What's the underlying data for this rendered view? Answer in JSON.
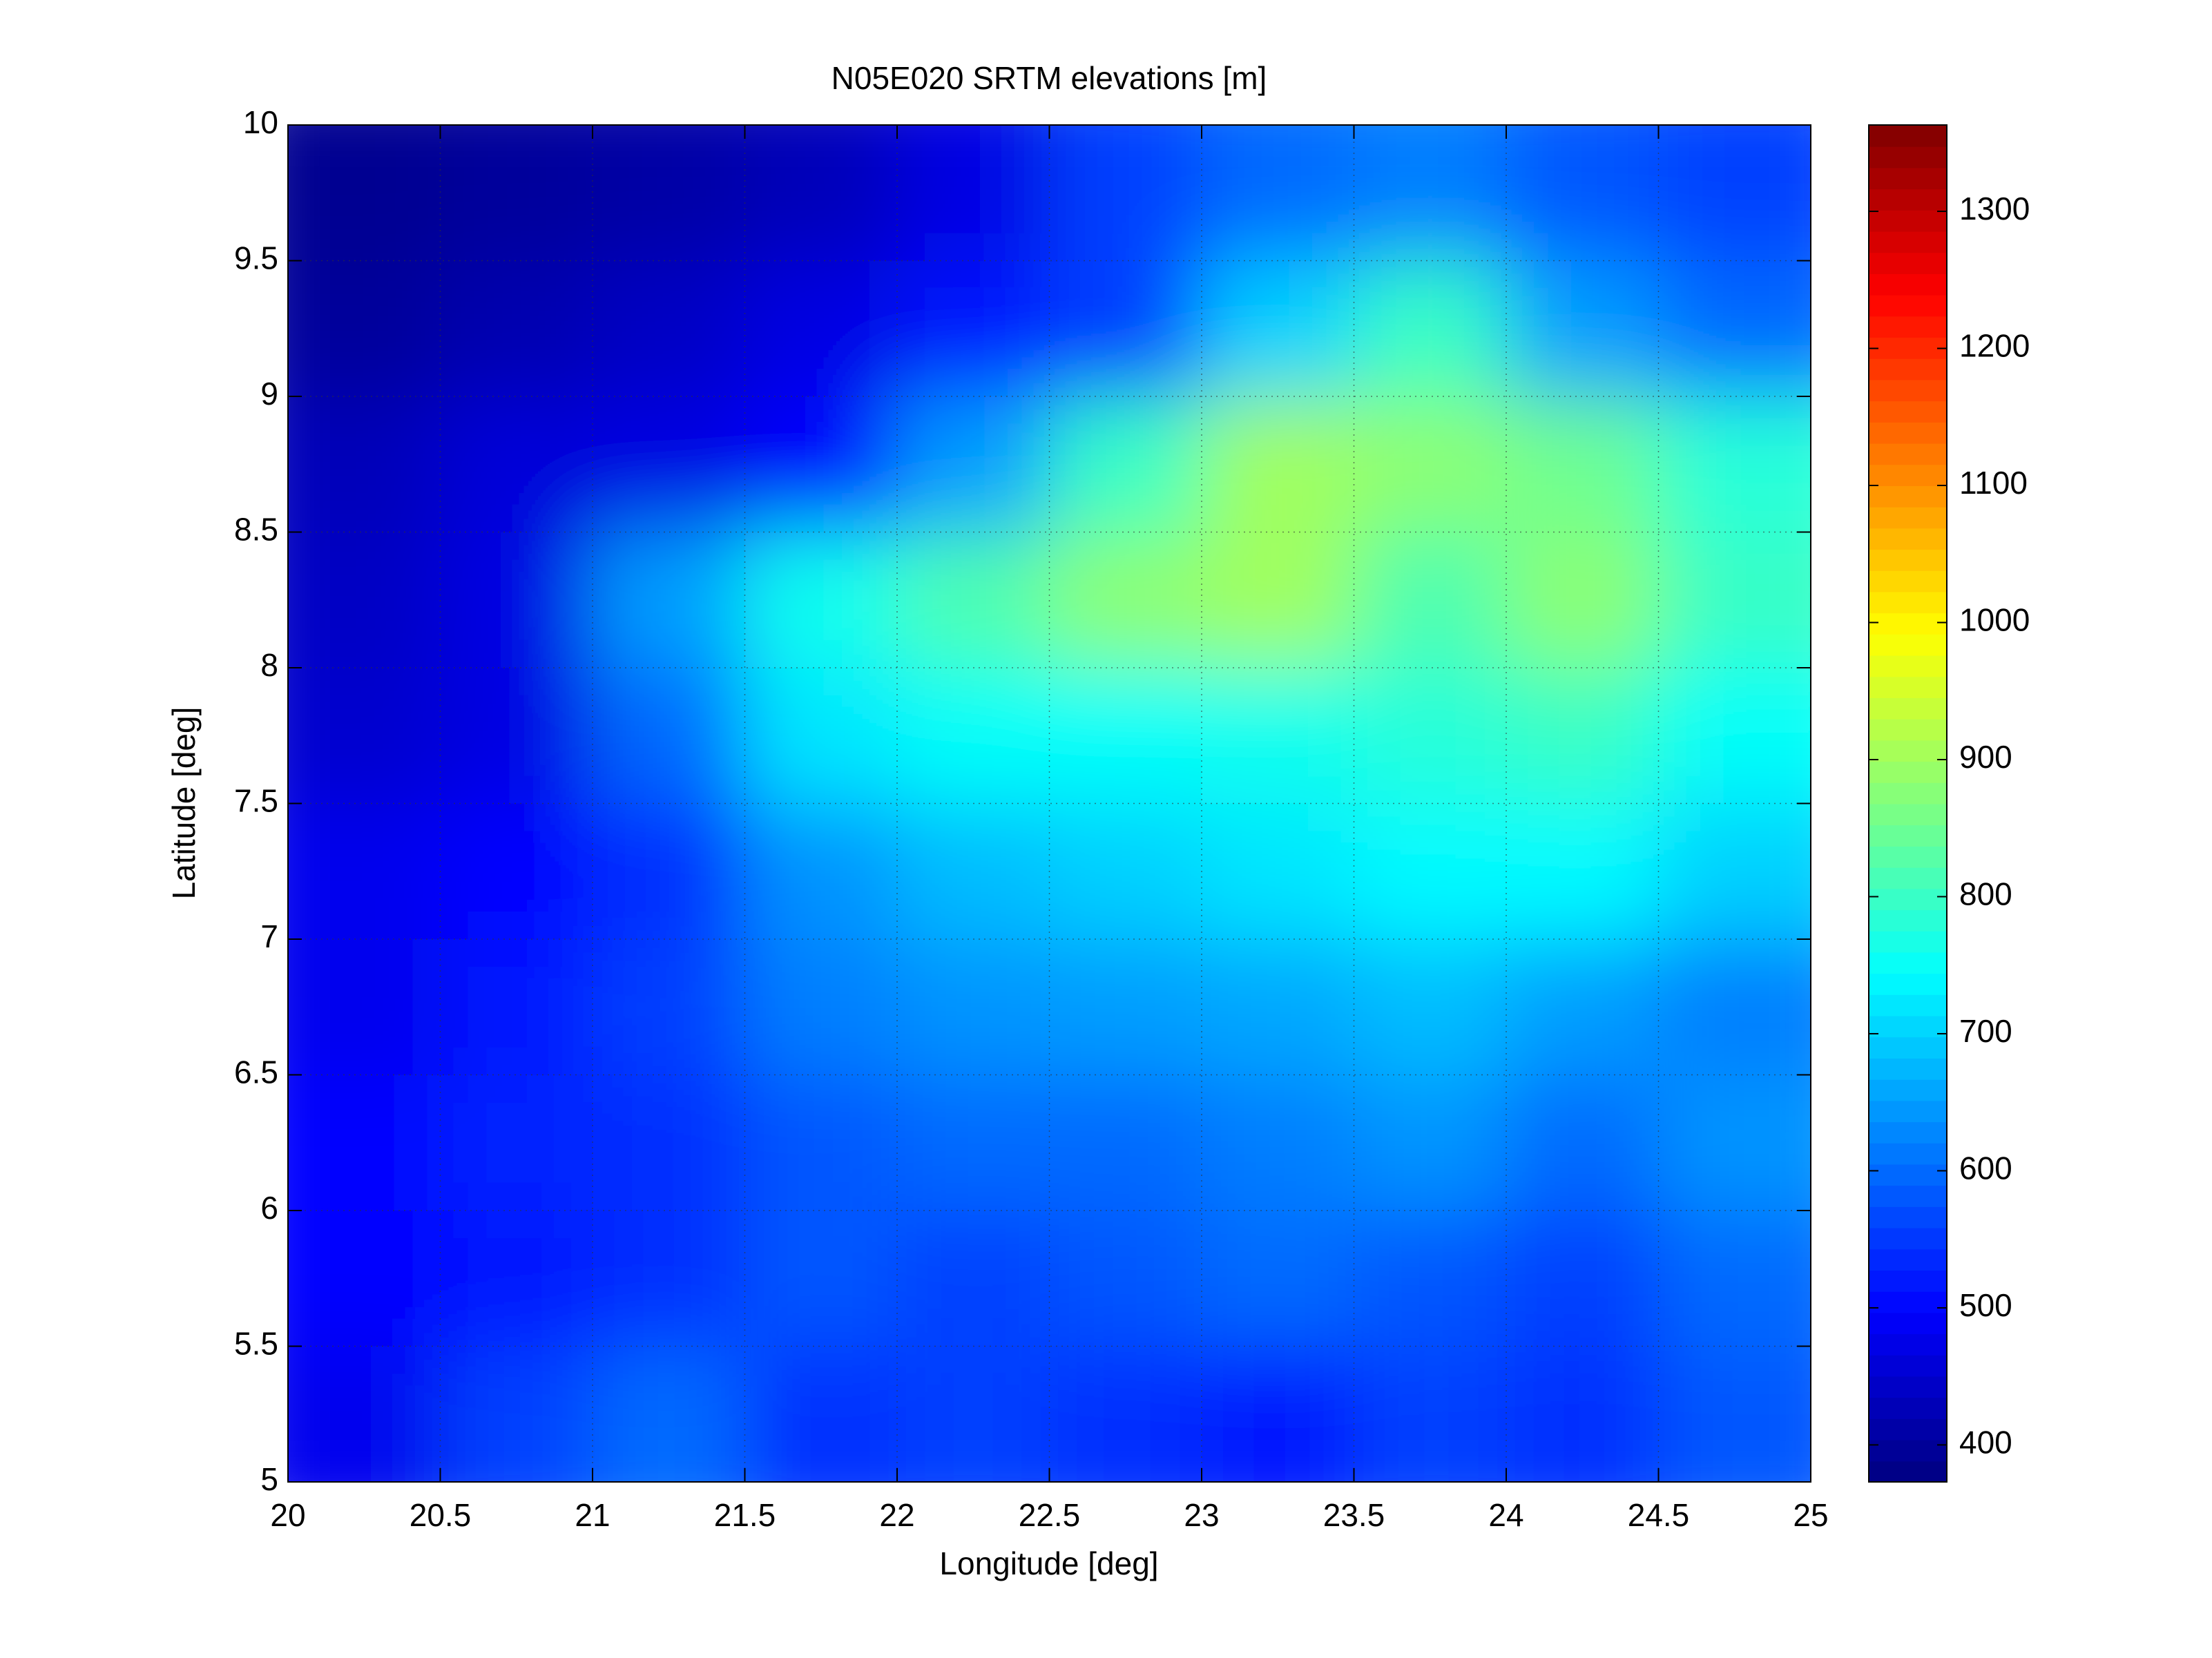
{
  "chart_data": {
    "type": "heatmap",
    "title": "N05E020 SRTM elevations [m]",
    "xlabel": "Longitude [deg]",
    "ylabel": "Latitude [deg]",
    "x": [
      20.25,
      20.75,
      21.25,
      21.75,
      22.25,
      22.75,
      23.25,
      23.75,
      24.25,
      24.75
    ],
    "y": [
      9.75,
      9.25,
      8.75,
      8.25,
      7.75,
      7.25,
      6.75,
      6.25,
      5.75,
      5.25
    ],
    "z": [
      [
        390,
        400,
        410,
        430,
        470,
        560,
        600,
        620,
        580,
        560
      ],
      [
        400,
        420,
        440,
        470,
        520,
        560,
        700,
        800,
        650,
        600
      ],
      [
        430,
        460,
        470,
        500,
        650,
        800,
        900,
        880,
        850,
        780
      ],
      [
        440,
        470,
        650,
        760,
        820,
        880,
        900,
        820,
        880,
        800
      ],
      [
        450,
        470,
        600,
        720,
        750,
        750,
        760,
        780,
        800,
        750
      ],
      [
        480,
        500,
        540,
        640,
        680,
        700,
        720,
        740,
        740,
        700
      ],
      [
        480,
        520,
        560,
        620,
        640,
        650,
        660,
        680,
        650,
        620
      ],
      [
        500,
        530,
        540,
        580,
        600,
        600,
        620,
        640,
        600,
        640
      ],
      [
        500,
        520,
        540,
        580,
        560,
        580,
        600,
        580,
        560,
        600
      ],
      [
        480,
        560,
        600,
        540,
        560,
        540,
        520,
        560,
        540,
        580
      ]
    ],
    "xlim": [
      20,
      25
    ],
    "ylim": [
      5,
      10
    ],
    "xticks": [
      20,
      20.5,
      21,
      21.5,
      22,
      22.5,
      23,
      23.5,
      24,
      24.5,
      25
    ],
    "yticks": [
      5,
      5.5,
      6,
      6.5,
      7,
      7.5,
      8,
      8.5,
      9,
      9.5,
      10
    ],
    "colormap": "jet",
    "clim": [
      373,
      1363
    ],
    "cticks": [
      400,
      500,
      600,
      700,
      800,
      900,
      1000,
      1100,
      1200,
      1300
    ],
    "grid": true
  }
}
